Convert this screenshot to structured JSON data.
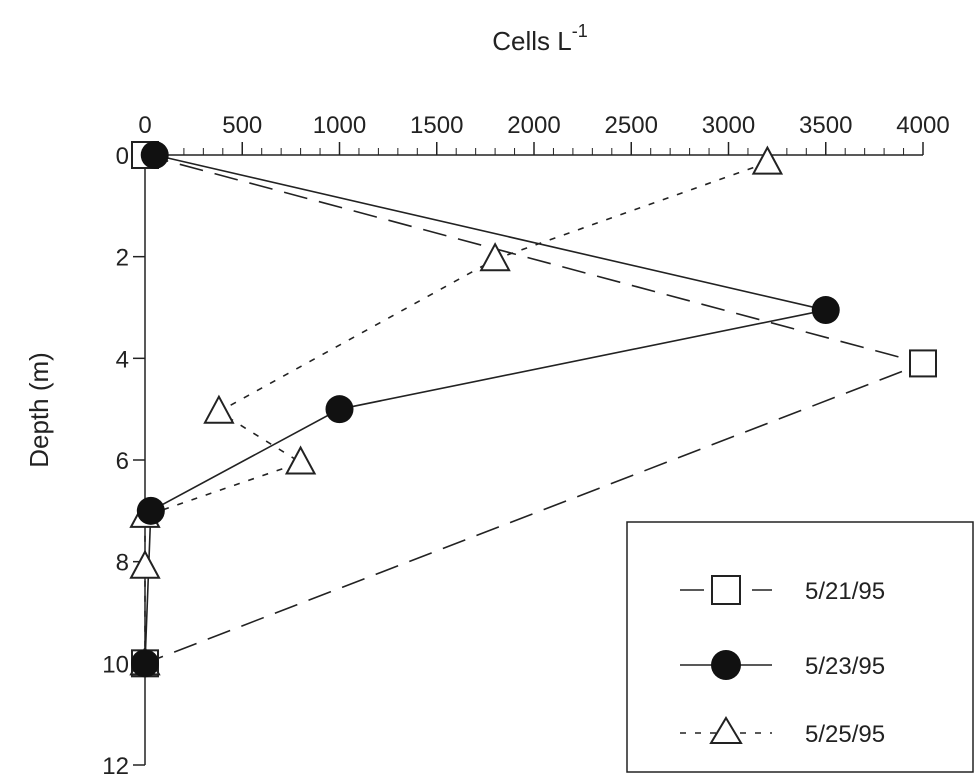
{
  "chart_data": {
    "type": "line",
    "xlabel_main": "Cells L",
    "xlabel_sup": "-1",
    "ylabel": "Depth (m)",
    "x_axis_position": "top",
    "y_inverted": true,
    "xlim": [
      0,
      4000
    ],
    "ylim": [
      0,
      12
    ],
    "x_ticks": [
      0,
      500,
      1000,
      1500,
      2000,
      2500,
      3000,
      3500,
      4000
    ],
    "x_tick_labels": [
      "0",
      "500",
      "1000",
      "1500",
      "2000",
      "2500",
      "3000",
      "3500",
      "4000"
    ],
    "y_ticks": [
      0,
      2,
      4,
      6,
      8,
      10,
      12
    ],
    "y_tick_labels": [
      "0",
      "2",
      "4",
      "6",
      "8",
      "10",
      "12"
    ],
    "legend_placement": "bottom-right",
    "series": [
      {
        "name": "5/21/95",
        "marker": "square-open",
        "line": "long-dash",
        "points": [
          [
            0,
            0
          ],
          [
            4000,
            4.1
          ],
          [
            0,
            10
          ]
        ]
      },
      {
        "name": "5/23/95",
        "marker": "circle-filled",
        "line": "solid",
        "points": [
          [
            50,
            0
          ],
          [
            3500,
            3.05
          ],
          [
            1000,
            5
          ],
          [
            30,
            7
          ],
          [
            0,
            10
          ]
        ]
      },
      {
        "name": "5/25/95",
        "marker": "triangle-open",
        "line": "short-dash",
        "points": [
          [
            3200,
            0.15
          ],
          [
            1800,
            2.05
          ],
          [
            380,
            5.05
          ],
          [
            800,
            6.05
          ],
          [
            0,
            7.1
          ],
          [
            0,
            8.1
          ],
          [
            0,
            10
          ]
        ]
      }
    ]
  }
}
